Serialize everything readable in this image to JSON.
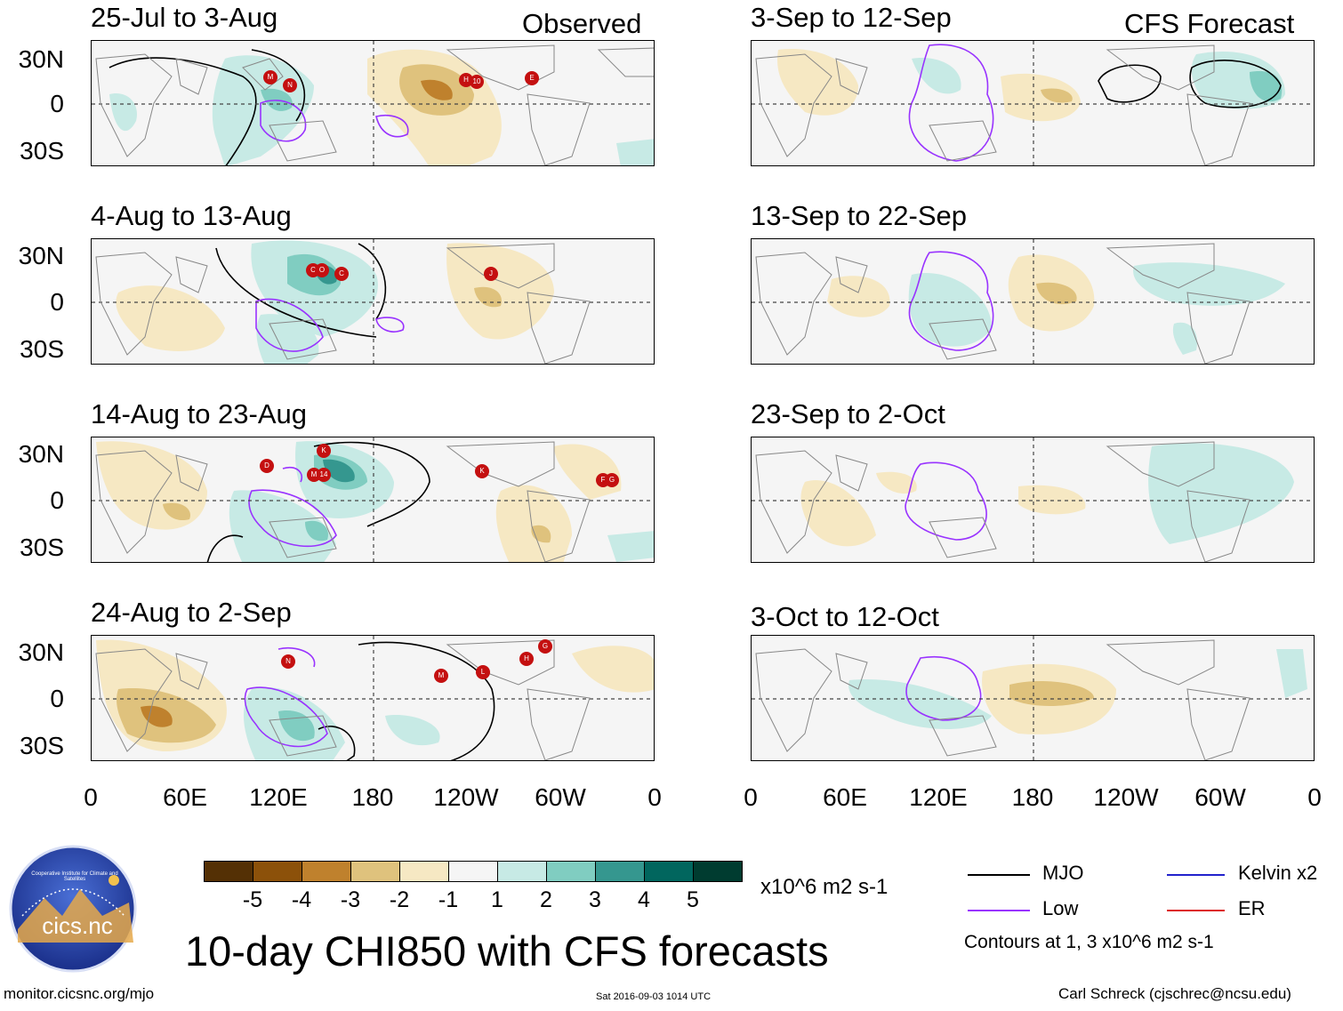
{
  "panels_left": [
    {
      "title": "25-Jul to 3-Aug",
      "tag": "Observed"
    },
    {
      "title": "4-Aug to 13-Aug",
      "tag": ""
    },
    {
      "title": "14-Aug to 23-Aug",
      "tag": ""
    },
    {
      "title": "24-Aug to 2-Sep",
      "tag": ""
    }
  ],
  "panels_right": [
    {
      "title": "3-Sep to 12-Sep",
      "tag": "CFS Forecast"
    },
    {
      "title": "13-Sep to 22-Sep",
      "tag": ""
    },
    {
      "title": "23-Sep to 2-Oct",
      "tag": ""
    },
    {
      "title": "3-Oct to 12-Oct",
      "tag": ""
    }
  ],
  "lat_labels": [
    "30N",
    "0",
    "30S"
  ],
  "lon_labels": [
    "0",
    "60E",
    "120E",
    "180",
    "120W",
    "60W",
    "0"
  ],
  "colorbar": {
    "colors": [
      "#543005",
      "#8c510a",
      "#bf812d",
      "#dfc27d",
      "#f6e8c3",
      "#f5f5f5",
      "#c7eae5",
      "#80cdc1",
      "#35978f",
      "#01665e",
      "#003c30"
    ],
    "labels": [
      "-5",
      "-4",
      "-3",
      "-2",
      "-1",
      "1",
      "2",
      "3",
      "4",
      "5"
    ],
    "units": "x10^6 m2 s-1"
  },
  "legend": {
    "mjo": "MJO",
    "low": "Low",
    "kelvin": "Kelvin x2",
    "er": "ER",
    "contours_note": "Contours at 1, 3 x10^6 m2 s-1",
    "colors": {
      "mjo": "#000000",
      "low": "#9933ff",
      "kelvin": "#2222cc",
      "er": "#dd2222"
    }
  },
  "main_title": "10-day CHI850 with CFS forecasts",
  "logo_text": "cics.nc",
  "logo_ring_text": "Cooperative Institute for Climate and Satellites",
  "footer": {
    "url": "monitor.cicsnc.org/mjo",
    "timestamp": "Sat 2016-09-03 1014 UTC",
    "author": "Carl Schreck (cjschrec@ncsu.edu)"
  },
  "storm_markers": [
    {
      "panel": 0,
      "labels": [
        "M",
        "N",
        "H",
        "10",
        "E"
      ]
    },
    {
      "panel": 1,
      "labels": [
        "C",
        "O",
        "C",
        "J"
      ]
    },
    {
      "panel": 2,
      "labels": [
        "D",
        "K",
        "M",
        "14",
        "K",
        "F",
        "G"
      ]
    },
    {
      "panel": 3,
      "labels": [
        "N",
        "M",
        "L",
        "H",
        "G"
      ]
    }
  ]
}
